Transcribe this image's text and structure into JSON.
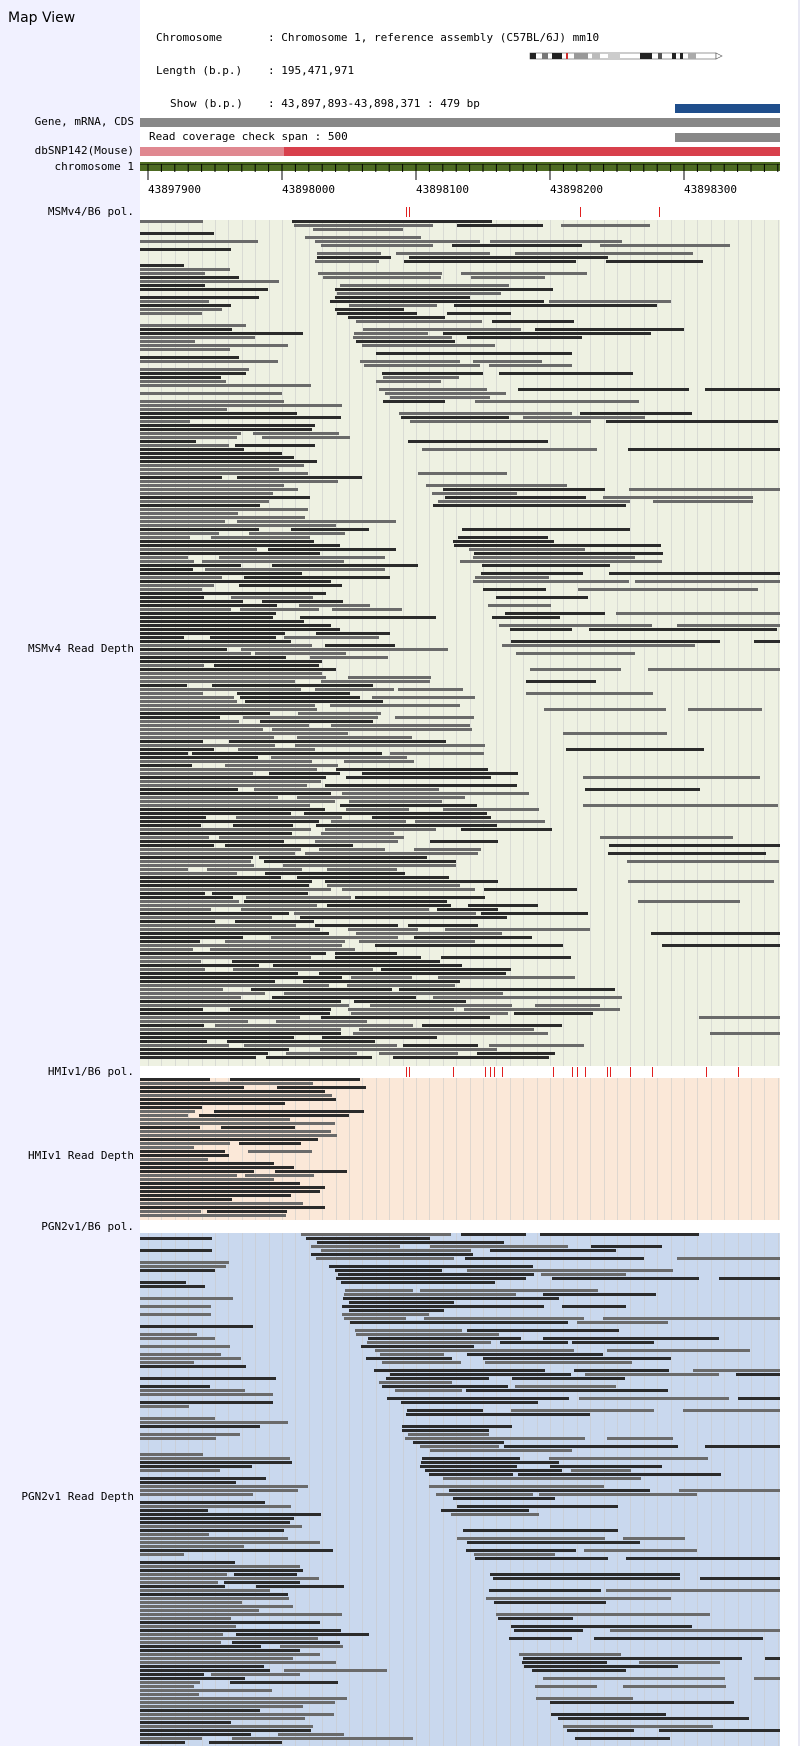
{
  "window_title": "Map View",
  "info": {
    "chromosome_key": "Chromosome",
    "chromosome_value": "Chromosome 1, reference assembly (C57BL/6J) mm10",
    "length_key": "Length (b.p.)",
    "length_value": "195,471,971",
    "show_key": "Show (b.p.)",
    "show_value": "43,897,893-43,898,371 : 479 bp",
    "coverage_key": "Read coverage check span",
    "coverage_value": "500"
  },
  "tracks": {
    "gene_label": "Gene, mRNA, CDS",
    "snp_label": "dbSNP142(Mouse)",
    "chrom_label": "chromosome 1"
  },
  "ruler": {
    "ticks": [
      "43897900",
      "43898000",
      "43898100",
      "43898200",
      "43898300"
    ],
    "range_bp": [
      43897893,
      43898371
    ]
  },
  "samples": [
    {
      "id": "msm",
      "pol_label": "MSMv4/B6 pol.",
      "depth_label": "MSMv4 Read Depth",
      "bg": "#eef1e2"
    },
    {
      "id": "hmi",
      "pol_label": "HMIv1/B6 pol.",
      "depth_label": "HMIv1 Read Depth",
      "bg": "#fbe8d8"
    },
    {
      "id": "pgn",
      "pol_label": "PGN2v1/B6 pol.",
      "depth_label": "PGN2v1 Read Depth",
      "bg": "#c9d8ee"
    }
  ],
  "colors": {
    "sidebar": "#f1f1ff",
    "gene_bar": "#888888",
    "gene_blue": "#1f4e8c",
    "snp_light": "#e08890",
    "snp_dark": "#d8404c",
    "chromosome": "#4d6a22",
    "polymorphism": "#e02020",
    "read_dark": "#2b2b2b",
    "read_mid": "#6a6a6a"
  }
}
